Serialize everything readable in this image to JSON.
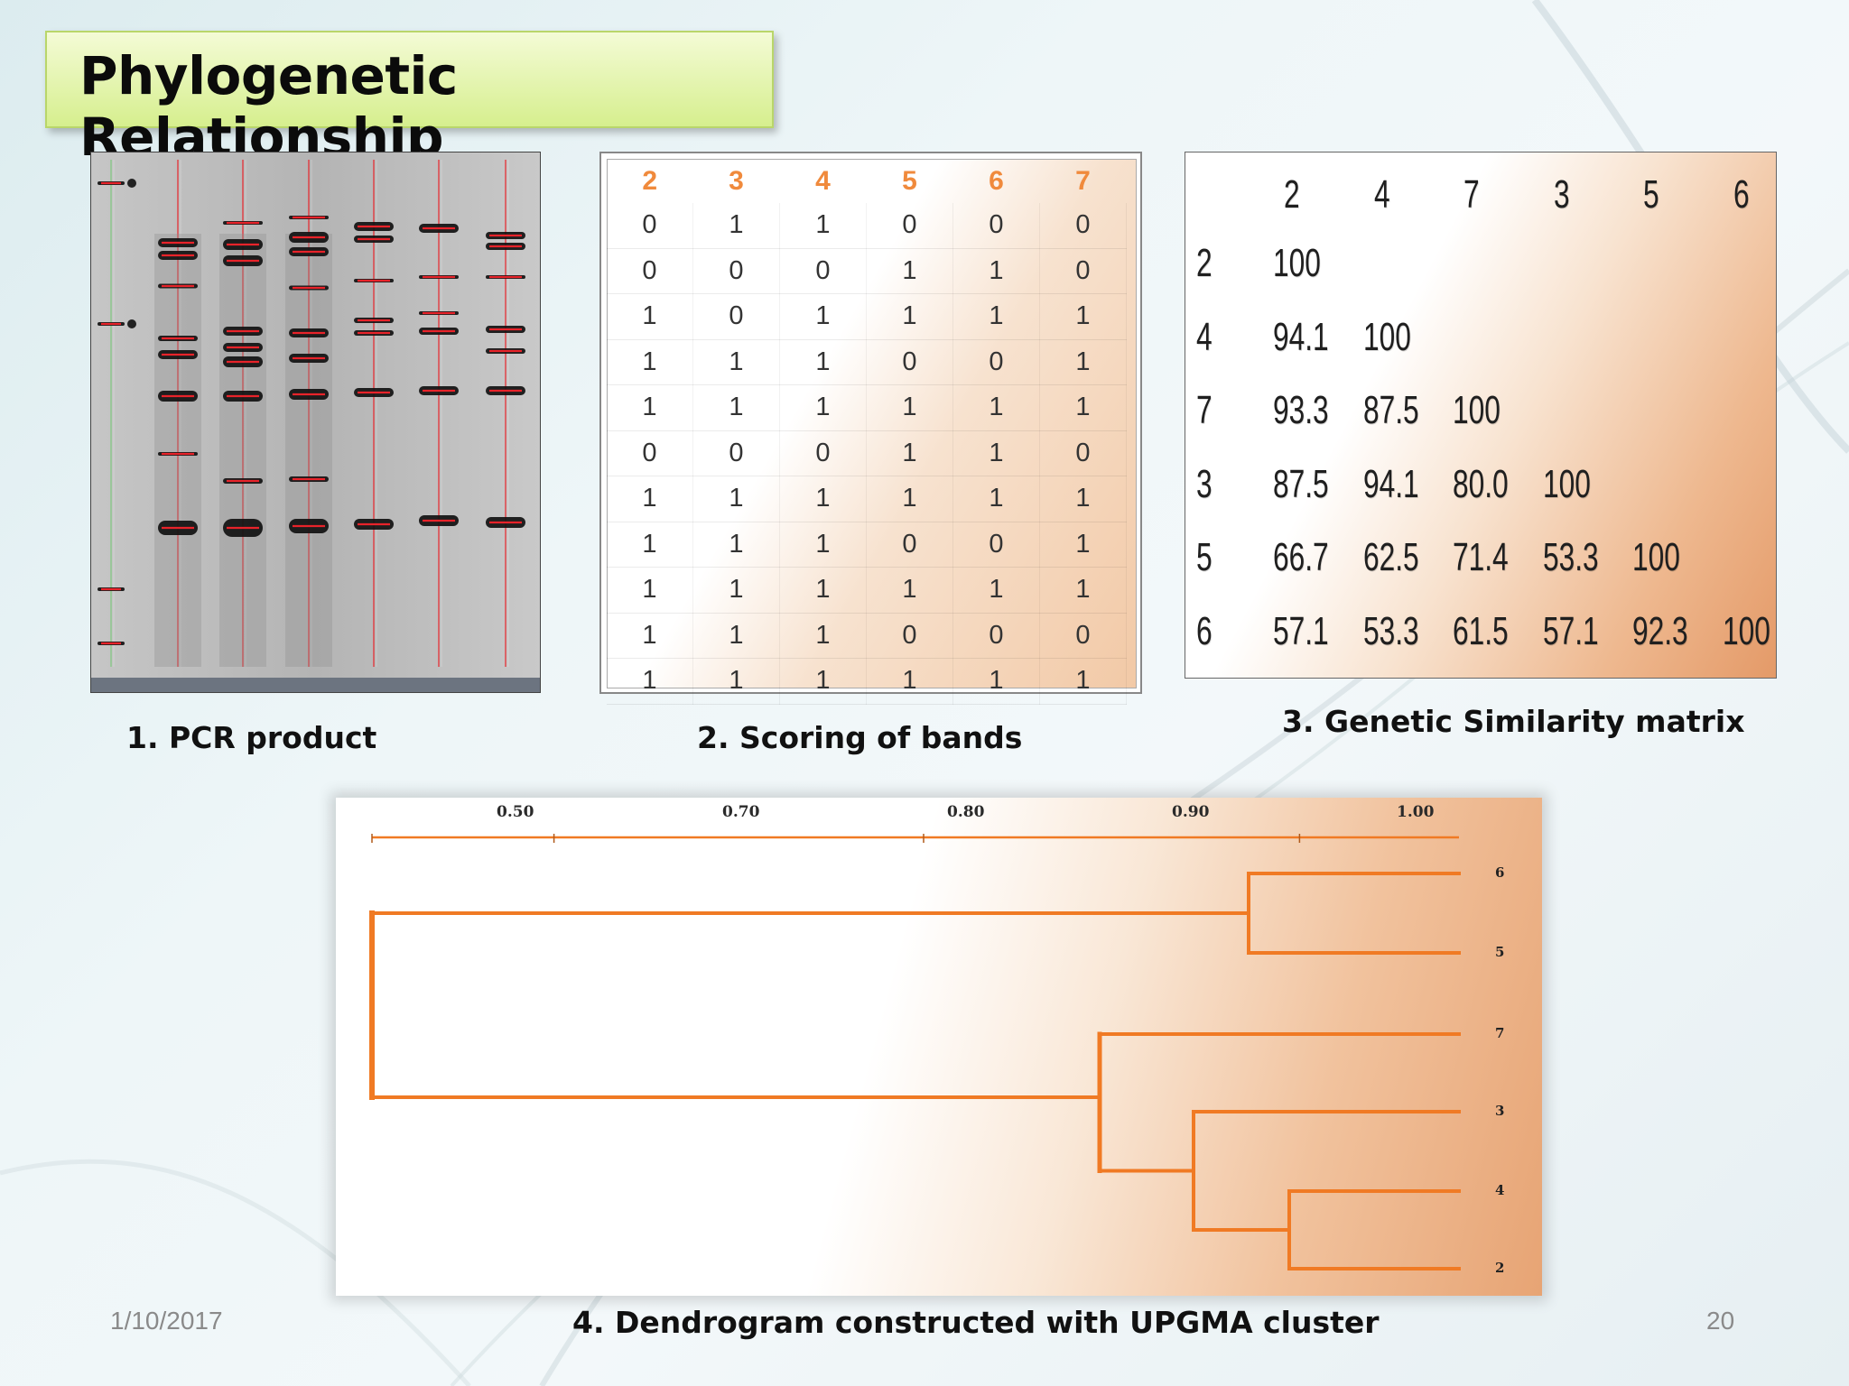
{
  "title": "Phylogenetic Relationship",
  "captions": {
    "pcr": "1. PCR product",
    "scoring": "2. Scoring of bands",
    "similarity": "3. Genetic Similarity matrix",
    "dendrogram": "4. Dendrogram constructed with UPGMA cluster"
  },
  "footer": {
    "date": "1/10/2017",
    "page": "20"
  },
  "scoring": {
    "headers": [
      "2",
      "3",
      "4",
      "5",
      "6",
      "7"
    ],
    "rows": [
      [
        "0",
        "1",
        "1",
        "0",
        "0",
        "0"
      ],
      [
        "0",
        "0",
        "0",
        "1",
        "1",
        "0"
      ],
      [
        "1",
        "0",
        "1",
        "1",
        "1",
        "1"
      ],
      [
        "1",
        "1",
        "1",
        "0",
        "0",
        "1"
      ],
      [
        "1",
        "1",
        "1",
        "1",
        "1",
        "1"
      ],
      [
        "0",
        "0",
        "0",
        "1",
        "1",
        "0"
      ],
      [
        "1",
        "1",
        "1",
        "1",
        "1",
        "1"
      ],
      [
        "1",
        "1",
        "1",
        "0",
        "0",
        "1"
      ],
      [
        "1",
        "1",
        "1",
        "1",
        "1",
        "1"
      ],
      [
        "1",
        "1",
        "1",
        "0",
        "0",
        "0"
      ],
      [
        "1",
        "1",
        "1",
        "1",
        "1",
        "1"
      ]
    ]
  },
  "matrix": {
    "col_headers": [
      "2",
      "4",
      "7",
      "3",
      "5",
      "6"
    ],
    "row_headers": [
      "2",
      "4",
      "7",
      "3",
      "5",
      "6"
    ],
    "rows": [
      [
        "100"
      ],
      [
        "94.1",
        "100"
      ],
      [
        "93.3",
        "87.5",
        "100"
      ],
      [
        "87.5",
        "94.1",
        "80.0",
        "100"
      ],
      [
        "66.7",
        "62.5",
        "71.4",
        "53.3",
        "100"
      ],
      [
        "57.1",
        "53.3",
        "61.5",
        "57.1",
        "92.3",
        "100"
      ]
    ]
  },
  "dendrogram": {
    "scale_labels": [
      "0.50",
      "0.70",
      "0.80",
      "0.90",
      "1.00"
    ],
    "leaves": [
      "6",
      "5",
      "7",
      "3",
      "4",
      "2"
    ],
    "color": "#f07a24"
  },
  "gel": {
    "lanes": 7,
    "band_color": "#e8232a"
  }
}
